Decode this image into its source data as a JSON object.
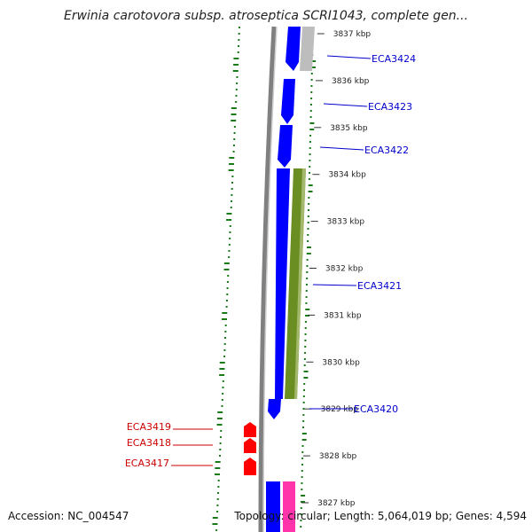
{
  "title": "Erwinia carotovora subsp. atroseptica SCRI1043, complete gen...",
  "accession": "Accession: NC_004547",
  "summary": "Topology: circular; Length: 5,064,019 bp; Genes: 4,594",
  "colors": {
    "forward_cds": "#0000ff",
    "reverse_cds": "#ff0000",
    "rna": "#6b8e23",
    "other_feature": "#ff33aa",
    "grey_feature": "#bdbdbd",
    "backbone": "#808080",
    "gc_tick": "#1a7a1a",
    "label_forward": "#0000cc",
    "label_reverse": "#cc0000"
  },
  "ruler": [
    {
      "label": "3837 kbp"
    },
    {
      "label": "3836 kbp"
    },
    {
      "label": "3835 kbp"
    },
    {
      "label": "3834 kbp"
    },
    {
      "label": "3833 kbp"
    },
    {
      "label": "3832 kbp"
    },
    {
      "label": "3831 kbp"
    },
    {
      "label": "3830 kbp"
    },
    {
      "label": "3829 kbp"
    },
    {
      "label": "3828 kbp"
    },
    {
      "label": "3827 kbp"
    }
  ],
  "gene_labels_forward": [
    {
      "name": "ECA3424"
    },
    {
      "name": "ECA3423"
    },
    {
      "name": "ECA3422"
    },
    {
      "name": "ECA3421"
    },
    {
      "name": "ECA3420"
    }
  ],
  "gene_labels_reverse": [
    {
      "name": "ECA3419"
    },
    {
      "name": "ECA3418"
    },
    {
      "name": "ECA3417"
    }
  ]
}
